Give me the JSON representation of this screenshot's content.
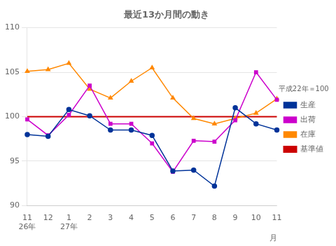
{
  "chart_data": {
    "type": "line",
    "title": "最近13か月間の動き",
    "xlabel": "月",
    "categories": [
      "11",
      "12",
      "1",
      "2",
      "3",
      "4",
      "5",
      "6",
      "7",
      "8",
      "9",
      "10",
      "11"
    ],
    "series": [
      {
        "name": "生産",
        "color": "#003399",
        "marker": "circle",
        "line_style": "solid",
        "values": [
          98.0,
          97.8,
          100.8,
          100.1,
          98.5,
          98.5,
          97.9,
          93.9,
          94.0,
          92.2,
          101.0,
          99.2,
          98.5
        ]
      },
      {
        "name": "出荷",
        "color": "#cc00cc",
        "marker": "square",
        "line_style": "solid",
        "values": [
          99.7,
          97.9,
          100.2,
          103.5,
          99.2,
          99.2,
          97.0,
          93.8,
          97.3,
          97.2,
          99.6,
          105.0,
          101.9
        ]
      },
      {
        "name": "在庫",
        "color": "#ff8800",
        "marker": "triangle",
        "line_style": "solid",
        "values": [
          105.1,
          105.3,
          106.0,
          103.1,
          102.1,
          104.0,
          105.5,
          102.1,
          99.8,
          99.2,
          99.8,
          100.4,
          102.0
        ]
      },
      {
        "name": "基準値",
        "color": "#cc0000",
        "marker": "none",
        "line_style": "solid",
        "values": [
          100,
          100,
          100,
          100,
          100,
          100,
          100,
          100,
          100,
          100,
          100,
          100,
          100
        ]
      }
    ],
    "annotations": [
      {
        "text": "平成22年＝100"
      },
      {
        "text": "26年",
        "x": 0
      },
      {
        "text": "27年",
        "x": 2
      }
    ],
    "ylim": [
      90,
      110
    ],
    "yticks": [
      90,
      95,
      100,
      105,
      110
    ],
    "grid": "y",
    "legend": "right"
  }
}
